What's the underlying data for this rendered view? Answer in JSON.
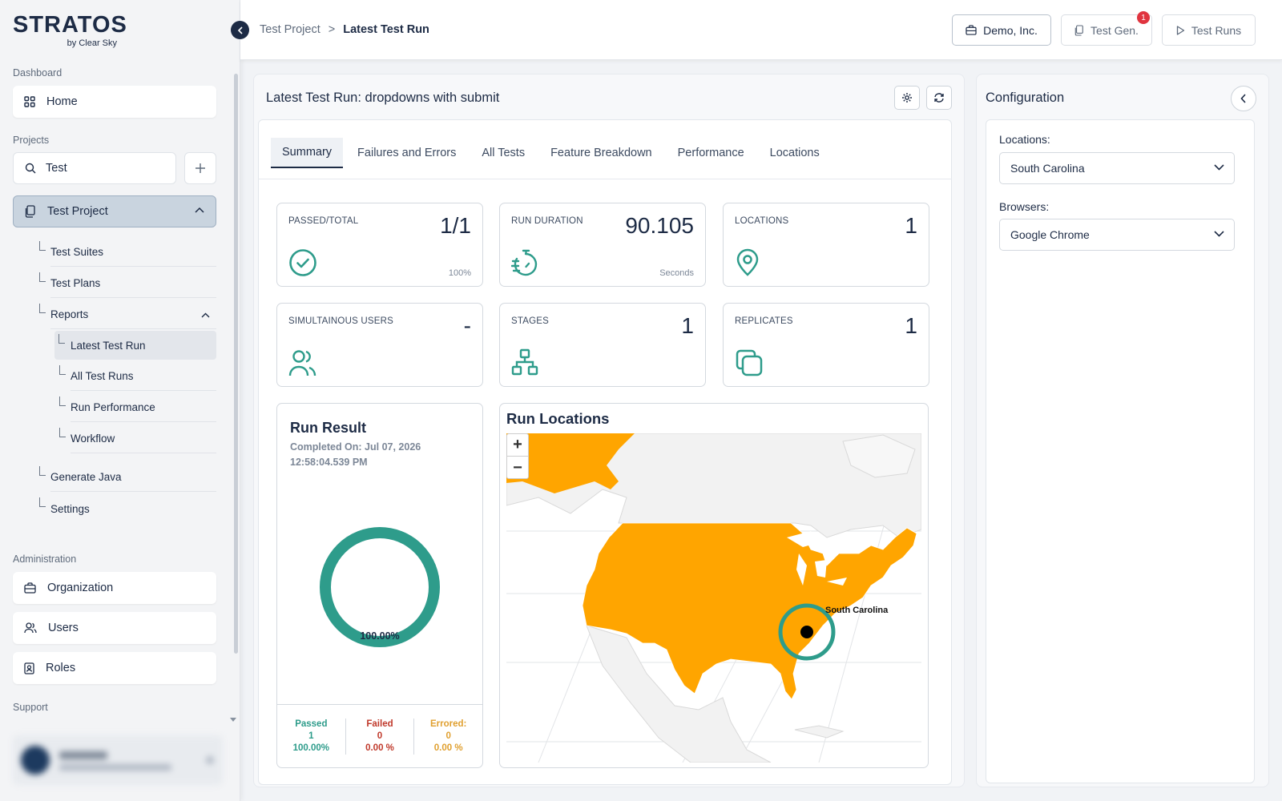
{
  "brand": {
    "name": "STRATOS",
    "tagline": "by Clear Sky"
  },
  "sidebar": {
    "dashboard_label": "Dashboard",
    "home": "Home",
    "projects_label": "Projects",
    "search_value": "Test",
    "project": "Test Project",
    "tree": [
      "Test Suites",
      "Test Plans",
      "Reports"
    ],
    "reports_children": [
      "Latest Test Run",
      "All Test Runs",
      "Run Performance",
      "Workflow"
    ],
    "tree_after": [
      "Generate Java",
      "Settings"
    ],
    "administration_label": "Administration",
    "admin_items": [
      "Organization",
      "Users",
      "Roles"
    ],
    "support_label": "Support"
  },
  "breadcrumb": {
    "parent": "Test Project",
    "separator": ">",
    "current": "Latest Test Run"
  },
  "top_buttons": {
    "org": "Demo, Inc.",
    "testgen": "Test Gen.",
    "testgen_badge": "1",
    "testruns": "Test Runs"
  },
  "main": {
    "title": "Latest Test Run: dropdowns with submit",
    "tabs": [
      "Summary",
      "Failures and Errors",
      "All Tests",
      "Feature Breakdown",
      "Performance",
      "Locations"
    ],
    "active_tab": "Summary"
  },
  "stats": {
    "passed": {
      "label": "PASSED/TOTAL",
      "value": "1/1",
      "sub": "100%"
    },
    "duration": {
      "label": "RUN DURATION",
      "value": "90.105",
      "sub": "Seconds"
    },
    "locations": {
      "label": "LOCATIONS",
      "value": "1"
    },
    "users": {
      "label": "SIMULTAINOUS USERS",
      "value": "-"
    },
    "stages": {
      "label": "STAGES",
      "value": "1"
    },
    "replicates": {
      "label": "REPLICATES",
      "value": "1"
    }
  },
  "run_result": {
    "title": "Run Result",
    "completed": "Completed On: Jul 07, 2026 12:58:04.539 PM",
    "donut_label": "100.00%",
    "pass_fraction": 1.0,
    "passed": {
      "label": "Passed",
      "count": "1",
      "pct": "100.00%"
    },
    "failed": {
      "label": "Failed",
      "count": "0",
      "pct": "0.00 %"
    },
    "errored": {
      "label": "Errored:",
      "count": "0",
      "pct": "0.00 %"
    }
  },
  "map": {
    "title": "Run Locations",
    "marker_label": "South Carolina",
    "zoom_in": "+",
    "zoom_out": "−"
  },
  "config": {
    "title": "Configuration",
    "locations_label": "Locations:",
    "locations_value": "South Carolina",
    "browsers_label": "Browsers:",
    "browsers_value": "Google Chrome"
  },
  "colors": {
    "accent": "#2e9c8b",
    "navy": "#1d2b45",
    "map_fill": "#ffa500",
    "failed": "#c0392b",
    "errored": "#e0a030"
  }
}
